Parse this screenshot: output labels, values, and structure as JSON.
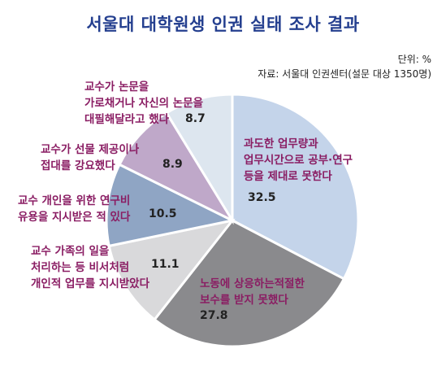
{
  "title": "서울대 대학원생 인권 실태 조사 결과",
  "unit": "단위: %",
  "source": "자료: 서울대 인권센터(설문 대상 1350명)",
  "chart_data": {
    "type": "pie",
    "title": "서울대 대학원생 인권 실태 조사 결과",
    "unit": "%",
    "slices": [
      {
        "label": "과도한 업무량과 업무시간으로 공부·연구 등을 제대로 못한다",
        "lines": [
          "과도한 업무량과",
          "업무시간으로 공부·연구",
          "등을 제대로 못한다"
        ],
        "value": 32.5,
        "display": "32.5",
        "color": "#c4d4ea"
      },
      {
        "label": "노동에 상응하는적절한 보수를 받지 못했다",
        "lines": [
          "노동에 상응하는적절한",
          "보수를 받지 못했다"
        ],
        "value": 27.8,
        "display": "27.8",
        "color": "#8a8a8d"
      },
      {
        "label": "교수 가족의 일을 처리하는 등 비서처럼 개인적 업무를 지시받았다",
        "lines": [
          "교수 가족의 일을",
          "처리하는 등 비서처럼",
          "개인적 업무를 지시받았다"
        ],
        "value": 11.1,
        "display": "11.1",
        "color": "#d9d9db"
      },
      {
        "label": "교수 개인을 위한 연구비 유용을 지시받은 적 있다",
        "lines": [
          "교수 개인을 위한 연구비",
          "유용을 지시받은 적 있다"
        ],
        "value": 10.5,
        "display": "10.5",
        "color": "#8fa5c4"
      },
      {
        "label": "교수가 선물 제공이나 접대를 강요했다",
        "lines": [
          "교수가 선물 제공이나",
          "접대를 강요했다"
        ],
        "value": 8.9,
        "display": "8.9",
        "color": "#bfa8c9"
      },
      {
        "label": "교수가 논문을 가로채거나 자신의 논문을 대필해달라고 했다",
        "lines": [
          "교수가 논문을",
          "가로채거나 자신의 논문을",
          "대필해달라고 했다"
        ],
        "value": 8.7,
        "display": "8.7",
        "color": "#dde6ef"
      }
    ]
  }
}
